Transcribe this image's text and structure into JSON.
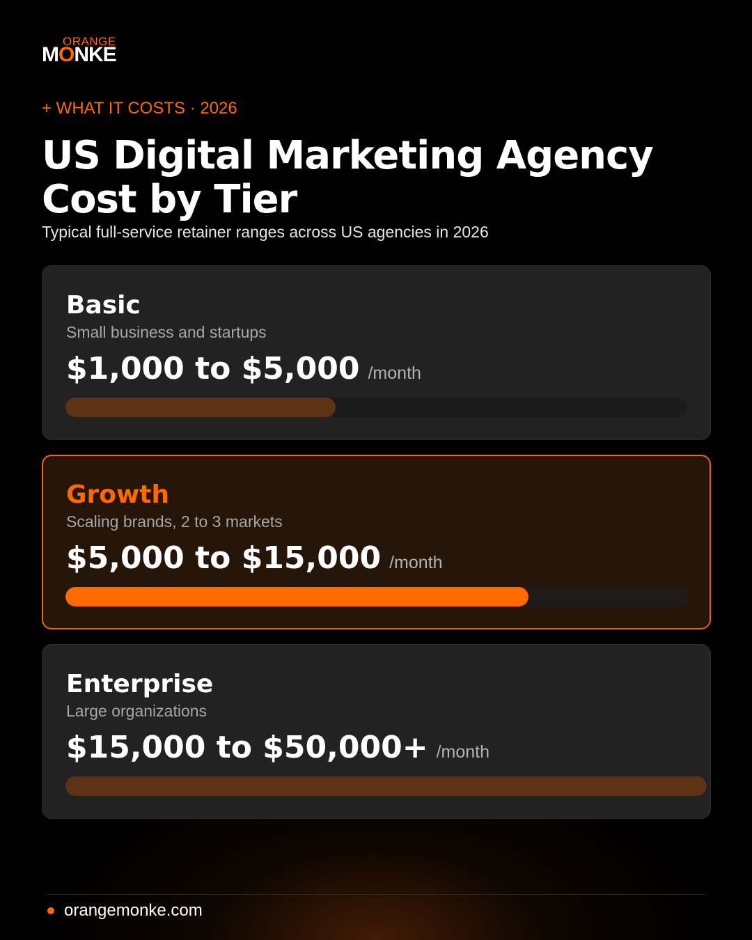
{
  "brand": {
    "logo_top": "ORANGE",
    "logo_main_a": "M",
    "logo_main_o": "O",
    "logo_main_b": "NKE",
    "accent": "#ff6a00"
  },
  "eyebrow": "+ WHAT IT COSTS · 2026",
  "title": "US Digital Marketing Agency Cost by Tier",
  "subtitle": "Typical full-service retainer ranges across US agencies in 2026",
  "tiers": [
    {
      "name": "Basic",
      "description": "Small business and startups",
      "price": "$1,000 to $5,000",
      "unit": "/month",
      "level": 0.435,
      "highlighted": false
    },
    {
      "name": "Growth",
      "description": "Scaling brands, 2 to 3 markets",
      "price": "$5,000 to $15,000",
      "unit": "/month",
      "level": 0.745,
      "highlighted": true
    },
    {
      "name": "Enterprise",
      "description": "Large organizations",
      "price": "$15,000 to $50,000+",
      "unit": "/month",
      "level": 1.0,
      "highlighted": false
    }
  ],
  "footer": {
    "website": "orangemonke.com"
  }
}
